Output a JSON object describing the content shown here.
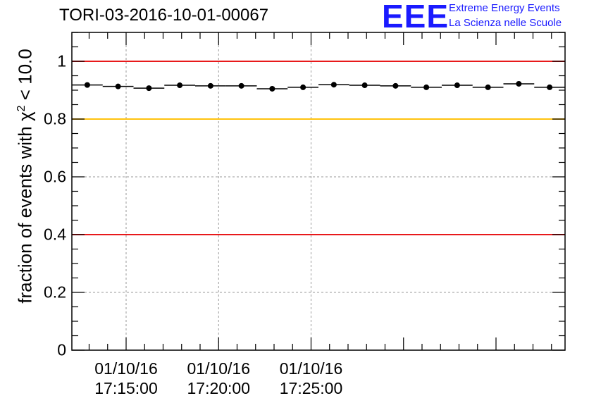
{
  "title": "TORI-03-2016-10-01-00067",
  "logo": {
    "mark": "EEE",
    "line1": "Extreme Energy Events",
    "line2": "La Scienza nelle Scuole"
  },
  "chart_data": {
    "type": "scatter",
    "title": "TORI-03-2016-10-01-00067",
    "ylabel_main": "fraction of events with χ",
    "ylabel_sup": "2",
    "ylabel_tail": " < 10.0",
    "ylim": [
      0,
      1.1
    ],
    "yticks": [
      0,
      0.2,
      0.4,
      0.6,
      0.8,
      1
    ],
    "ytick_labels": [
      "0",
      "0.2",
      "0.4",
      "0.6",
      "0.8",
      "1"
    ],
    "xlim_seconds": [
      -176,
      1424
    ],
    "xticks": [
      {
        "t": 0,
        "date": "01/10/16",
        "time": "17:15:00"
      },
      {
        "t": 300,
        "date": "01/10/16",
        "time": "17:20:00"
      },
      {
        "t": 600,
        "date": "01/10/16",
        "time": "17:25:00"
      }
    ],
    "bin_width_seconds": 100,
    "points": [
      {
        "t": -126,
        "y": 0.918
      },
      {
        "t": -26,
        "y": 0.913
      },
      {
        "t": 74,
        "y": 0.907
      },
      {
        "t": 174,
        "y": 0.917
      },
      {
        "t": 274,
        "y": 0.915
      },
      {
        "t": 374,
        "y": 0.915
      },
      {
        "t": 474,
        "y": 0.905
      },
      {
        "t": 574,
        "y": 0.91
      },
      {
        "t": 674,
        "y": 0.919
      },
      {
        "t": 774,
        "y": 0.917
      },
      {
        "t": 874,
        "y": 0.915
      },
      {
        "t": 974,
        "y": 0.91
      },
      {
        "t": 1074,
        "y": 0.917
      },
      {
        "t": 1174,
        "y": 0.91
      },
      {
        "t": 1274,
        "y": 0.922
      },
      {
        "t": 1374,
        "y": 0.91
      }
    ],
    "reference_lines": [
      {
        "y": 1.0,
        "color": "#e8191b",
        "name": "upper-limit"
      },
      {
        "y": 0.8,
        "color": "#ffc20e",
        "name": "warning-limit"
      },
      {
        "y": 0.4,
        "color": "#e8191b",
        "name": "lower-limit"
      }
    ],
    "grid": true
  }
}
